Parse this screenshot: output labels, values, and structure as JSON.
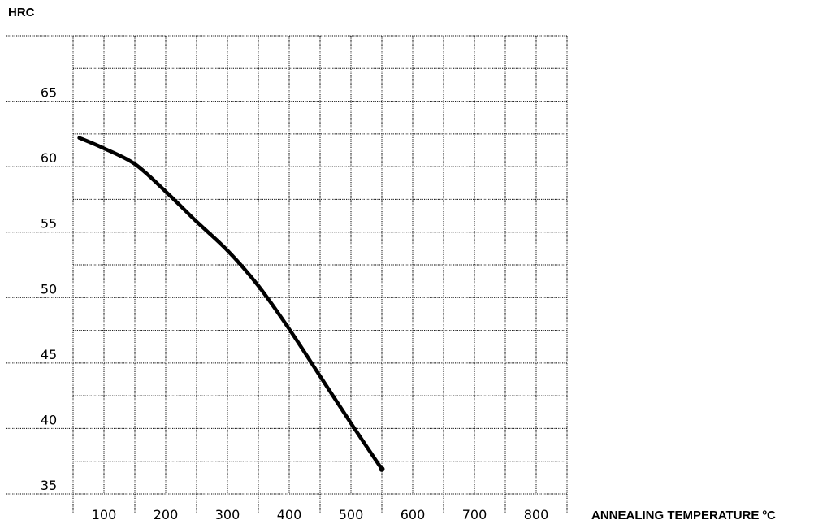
{
  "chart_data": {
    "type": "line",
    "title": "",
    "ylabel": "HRC",
    "xlabel": "ANNEALING TEMPERATURE ºC",
    "x_ticks": [
      100,
      200,
      300,
      400,
      500,
      600,
      700,
      800
    ],
    "x_tick_labels": [
      "100",
      "200",
      "300",
      "400",
      "500",
      "600",
      "700",
      "800"
    ],
    "y_ticks": [
      35,
      40,
      45,
      50,
      55,
      60,
      65
    ],
    "y_tick_labels": [
      "35",
      "40",
      "45",
      "50",
      "55",
      "60",
      "65"
    ],
    "xlim": [
      50,
      850
    ],
    "ylim": [
      35,
      70
    ],
    "grid": true,
    "line_color": "#000000",
    "series": [
      {
        "x": [
          60,
          100,
          150,
          200,
          250,
          300,
          350,
          400,
          450,
          500,
          550
        ],
        "y": [
          62.2,
          61.4,
          60.2,
          58.1,
          55.8,
          53.6,
          50.9,
          47.6,
          44.0,
          40.4,
          36.9
        ]
      }
    ]
  }
}
